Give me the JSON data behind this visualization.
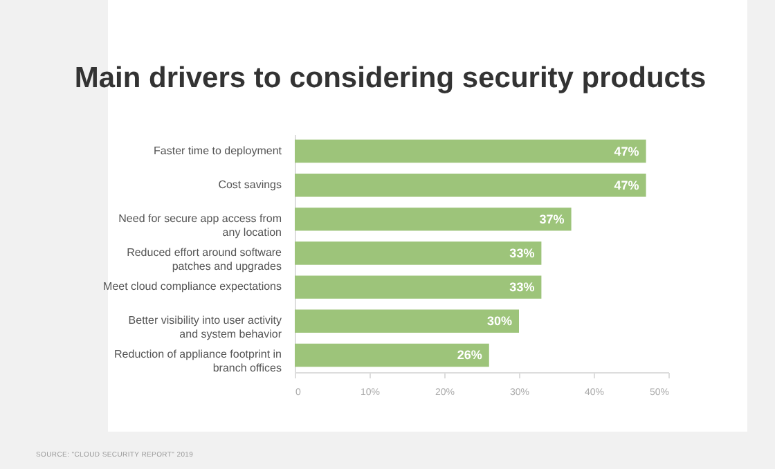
{
  "chart_data": {
    "type": "bar",
    "orientation": "horizontal",
    "title": "Main drivers to considering security products",
    "categories": [
      "Faster time to deployment",
      "Cost savings",
      "Need for secure app access from any location",
      "Reduced effort around software patches and upgrades",
      "Meet cloud compliance expectations",
      "Better visibility into user activity and system behavior",
      "Reduction of appliance footprint in branch offices"
    ],
    "values": [
      47,
      47,
      37,
      33,
      33,
      30,
      26
    ],
    "value_labels": [
      "47%",
      "47%",
      "37%",
      "33%",
      "33%",
      "30%",
      "26%"
    ],
    "color": "#9dc47a",
    "xlim": [
      0,
      50
    ],
    "xticks": [
      0,
      {
        "value": 10,
        "label": "10%"
      },
      {
        "value": 20,
        "label": "20%"
      },
      {
        "value": 30,
        "label": "30%"
      },
      {
        "value": 40,
        "label": "40%"
      },
      {
        "value": 50,
        "label": "50%"
      }
    ],
    "grid": false,
    "annotations": [
      "SOURCE: \"CLOUD SECURITY REPORT\" 2019"
    ]
  }
}
